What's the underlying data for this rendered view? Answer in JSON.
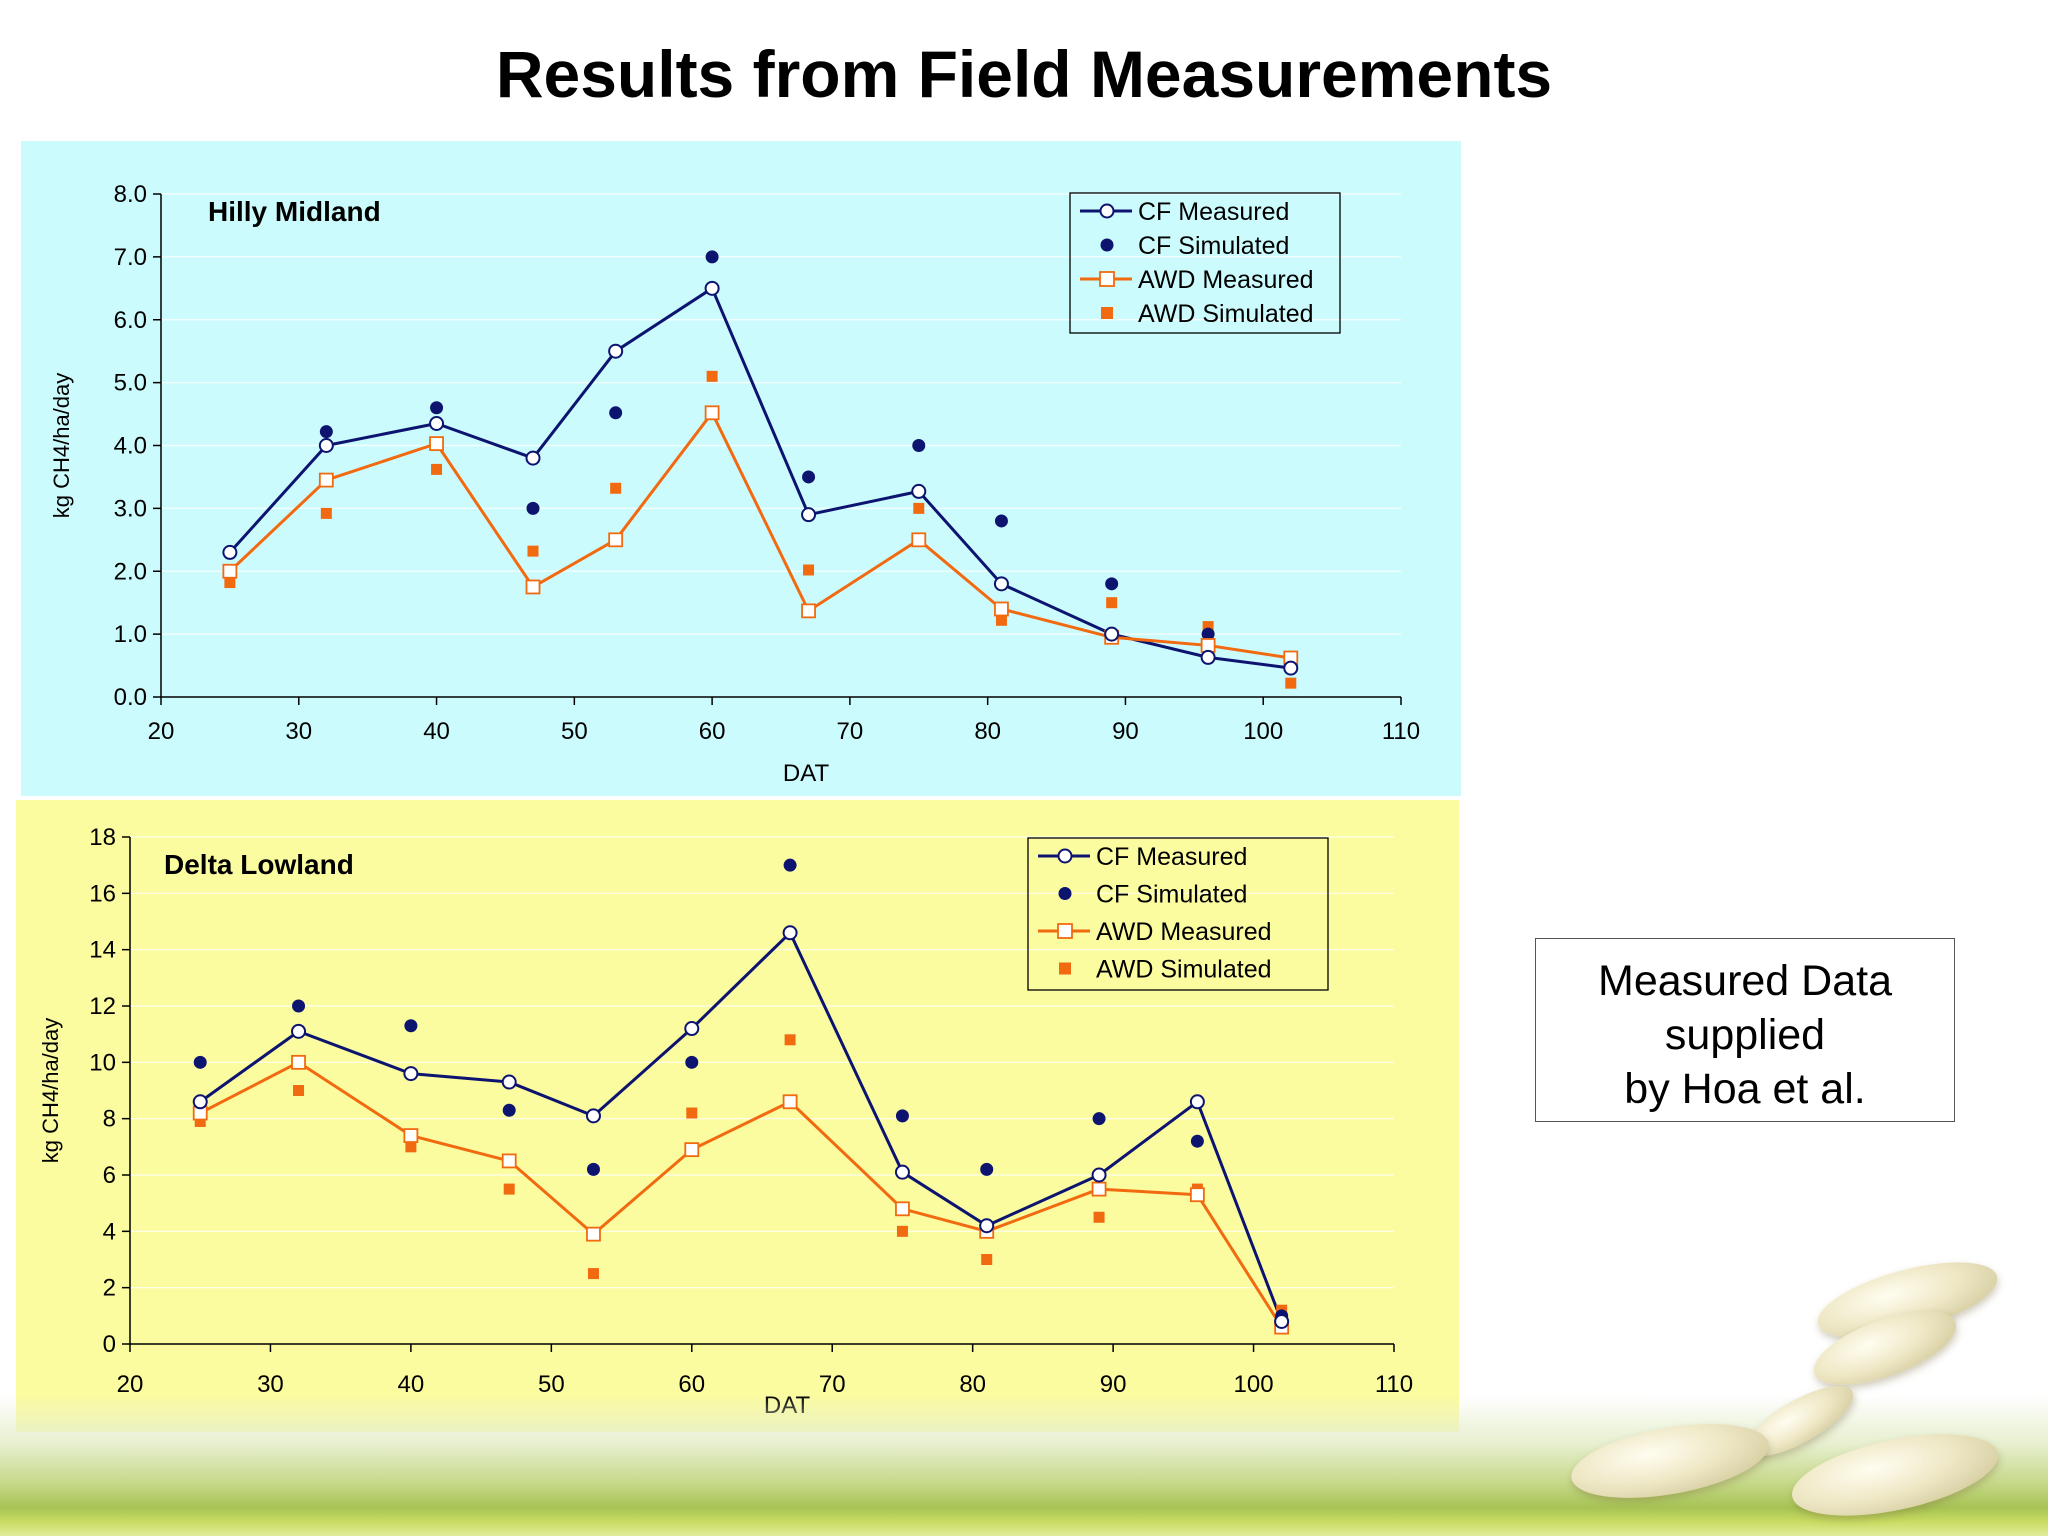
{
  "title": "Results from Field Measurements",
  "note": {
    "lines": [
      "Measured Data",
      "supplied",
      "by Hoa et al."
    ]
  },
  "colors": {
    "cf": "#0d1470",
    "awd": "#f26a10",
    "top_panel_bg": "#ccfbfd",
    "bottom_panel_bg": "#fbfba0"
  },
  "chart_data": [
    {
      "type": "line",
      "title": "Hilly Midland",
      "xlabel": "DAT",
      "ylabel": "kg CH4/ha/day",
      "xlim": [
        20,
        110
      ],
      "ylim": [
        0,
        8
      ],
      "xticks": [
        20,
        30,
        40,
        50,
        60,
        70,
        80,
        90,
        100,
        110
      ],
      "yticks": [
        0,
        1,
        2,
        3,
        4,
        5,
        6,
        7,
        8
      ],
      "ytick_labels": [
        "0.0",
        "1.0",
        "2.0",
        "3.0",
        "4.0",
        "5.0",
        "6.0",
        "7.0",
        "8.0"
      ],
      "grid": "horizontal",
      "legend_position": "top-right",
      "x": [
        25,
        32,
        40,
        47,
        53,
        60,
        67,
        75,
        81,
        89,
        96,
        102
      ],
      "series": [
        {
          "name": "CF Measured",
          "style": "line-circle",
          "values": [
            2.3,
            4.0,
            4.35,
            3.8,
            5.5,
            6.5,
            2.9,
            3.27,
            1.8,
            1.0,
            0.63,
            0.46
          ]
        },
        {
          "name": "CF Simulated",
          "style": "dot",
          "values": [
            null,
            4.22,
            4.6,
            3.0,
            4.52,
            7.0,
            3.5,
            4.0,
            2.8,
            1.8,
            1.0,
            null
          ]
        },
        {
          "name": "AWD Measured",
          "style": "line-square",
          "values": [
            2.0,
            3.45,
            4.03,
            1.75,
            2.5,
            4.52,
            1.37,
            2.5,
            1.4,
            0.95,
            0.82,
            0.62
          ]
        },
        {
          "name": "AWD Simulated",
          "style": "square",
          "values": [
            1.82,
            2.92,
            3.62,
            2.32,
            3.32,
            5.1,
            2.02,
            3.0,
            1.22,
            1.5,
            1.12,
            0.22
          ]
        }
      ]
    },
    {
      "type": "line",
      "title": "Delta Lowland",
      "xlabel": "DAT",
      "ylabel": "kg CH4/ha/day",
      "xlim": [
        20,
        110
      ],
      "ylim": [
        0,
        18
      ],
      "xticks": [
        20,
        30,
        40,
        50,
        60,
        70,
        80,
        90,
        100,
        110
      ],
      "yticks": [
        0,
        2,
        4,
        6,
        8,
        10,
        12,
        14,
        16,
        18
      ],
      "ytick_labels": [
        "0",
        "2",
        "4",
        "6",
        "8",
        "10",
        "12",
        "14",
        "16",
        "18"
      ],
      "grid": "horizontal",
      "legend_position": "top-right",
      "x": [
        25,
        32,
        40,
        47,
        53,
        60,
        67,
        75,
        81,
        89,
        96,
        102
      ],
      "series": [
        {
          "name": "CF Measured",
          "style": "line-circle",
          "values": [
            8.6,
            11.1,
            9.6,
            9.3,
            8.1,
            11.2,
            14.6,
            6.1,
            4.2,
            6.0,
            8.6,
            0.8
          ]
        },
        {
          "name": "CF Simulated",
          "style": "dot",
          "values": [
            10.0,
            12.0,
            11.3,
            8.3,
            6.2,
            10.0,
            17.0,
            8.1,
            6.2,
            8.0,
            7.2,
            1.0
          ]
        },
        {
          "name": "AWD Measured",
          "style": "line-square",
          "values": [
            8.2,
            10.0,
            7.4,
            6.5,
            3.9,
            6.9,
            8.6,
            4.8,
            4.0,
            5.5,
            5.3,
            0.6
          ]
        },
        {
          "name": "AWD Simulated",
          "style": "square",
          "values": [
            7.9,
            9.0,
            7.0,
            5.5,
            2.5,
            8.2,
            10.8,
            4.0,
            3.0,
            4.5,
            5.5,
            1.2
          ]
        }
      ]
    }
  ]
}
